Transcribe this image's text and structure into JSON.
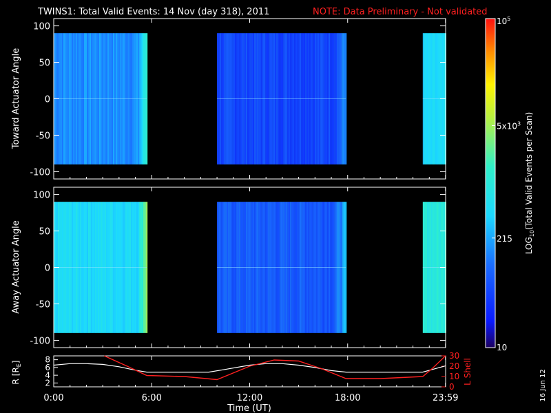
{
  "title": "TWINS1: Total Valid Events: 14 Nov (day 318), 2011",
  "note": "NOTE: Data Preliminary - Not validated",
  "date_stamp": "16 Jun 12",
  "colors": {
    "background": "#000000",
    "axes": "#ffffff",
    "note": "#ff2020",
    "lshell": "#ff2020",
    "r_line": "#ffffff"
  },
  "chart_data": [
    {
      "type": "heatmap",
      "ylabel": "Toward Actuator Angle",
      "ylim": [
        -110,
        110
      ],
      "yticks": [
        100,
        50,
        0,
        -50,
        -100
      ],
      "xlim": [
        0,
        24
      ],
      "data_y_range": [
        -90,
        90
      ],
      "data_blocks": [
        {
          "x_start": 0.0,
          "x_end": 5.7,
          "level": 0.3,
          "edge_level": 0.55
        },
        {
          "x_start": 10.0,
          "x_end": 17.9,
          "level": 0.18,
          "edge_level": 0.3
        },
        {
          "x_start": 22.6,
          "x_end": 23.99,
          "level": 0.4,
          "edge_level": 0.45
        }
      ]
    },
    {
      "type": "heatmap",
      "ylabel": "Away Actuator Angle",
      "ylim": [
        -110,
        110
      ],
      "yticks": [
        100,
        50,
        0,
        -50,
        -100
      ],
      "xlim": [
        0,
        24
      ],
      "data_y_range": [
        -90,
        90
      ],
      "data_blocks": [
        {
          "x_start": 0.0,
          "x_end": 5.7,
          "level": 0.42,
          "edge_level": 0.7
        },
        {
          "x_start": 10.0,
          "x_end": 17.9,
          "level": 0.22,
          "edge_level": 0.36
        },
        {
          "x_start": 22.6,
          "x_end": 23.99,
          "level": 0.5,
          "edge_level": 0.62
        }
      ]
    },
    {
      "type": "line",
      "ylabel_left": "R [R",
      "ylabel_left_sub": "E",
      "ylabel_left_close": "]",
      "ylabel_right": "L Shell",
      "xlabel": "Time (UT)",
      "xticks": [
        "0:00",
        "6:00",
        "12:00",
        "18:00",
        "23:59"
      ],
      "xtick_values": [
        0,
        6,
        12,
        18,
        23.99
      ],
      "ylim_left": [
        1,
        9
      ],
      "yticks_left": [
        8,
        6,
        4,
        2
      ],
      "ylim_right": [
        0,
        30
      ],
      "yticks_right": [
        30,
        20,
        10,
        0
      ],
      "series": [
        {
          "axis": "left",
          "x": [
            0,
            1,
            2,
            3,
            4,
            5,
            5.7,
            6.5,
            8,
            9.5,
            10.5,
            12,
            13,
            14,
            15,
            16,
            17,
            17.9,
            19,
            21,
            22.6,
            23.2,
            23.99
          ],
          "y": [
            6.6,
            7.0,
            7.0,
            6.8,
            6.2,
            5.3,
            4.8,
            4.8,
            4.8,
            4.8,
            5.5,
            6.6,
            7.0,
            7.0,
            6.6,
            6.0,
            5.2,
            4.8,
            4.8,
            4.8,
            4.8,
            5.5,
            6.4
          ]
        },
        {
          "axis": "right",
          "x": [
            3.1,
            4.5,
            5.7,
            8,
            10,
            12,
            13.5,
            15,
            16.5,
            17.9,
            20,
            22.6,
            23.2,
            23.99
          ],
          "y": [
            30,
            20,
            11,
            10,
            7,
            20,
            26,
            25,
            17,
            8,
            8,
            10,
            18,
            30
          ]
        }
      ]
    }
  ],
  "colorbar": {
    "label_prefix": "LOG",
    "label_sub": "10",
    "label_suffix": "(Total Valid Events per Scan)",
    "ticks": [
      {
        "text": "10",
        "value": 10
      },
      {
        "text": "215",
        "value": 215
      },
      {
        "text": "5x10",
        "sup": "3",
        "value": 5000
      },
      {
        "text": "10",
        "sup": "5",
        "value": 100000
      }
    ],
    "range": [
      10,
      100000
    ]
  }
}
